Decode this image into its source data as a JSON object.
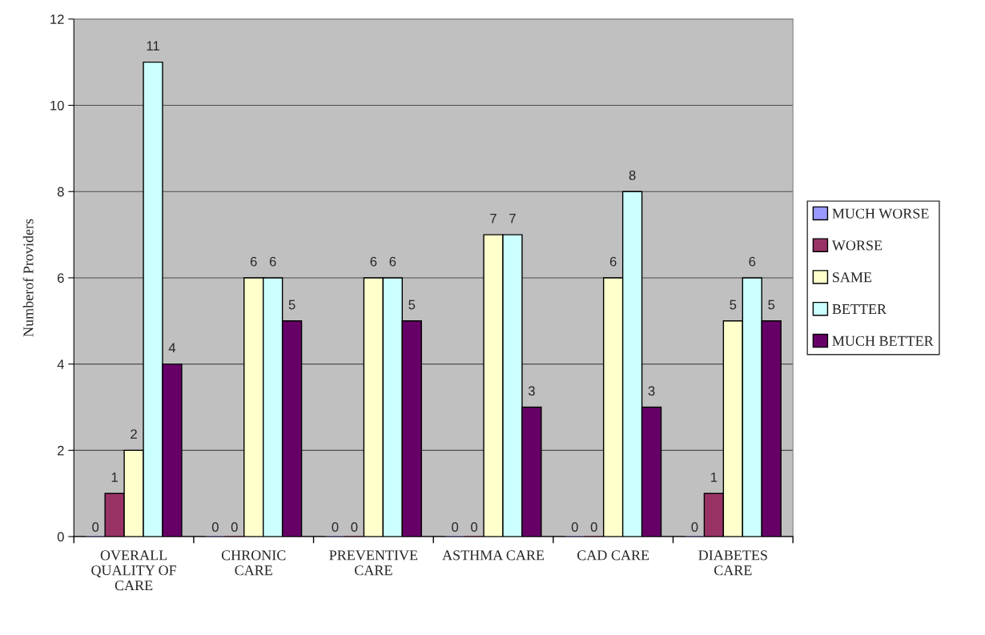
{
  "chart_data": {
    "type": "bar",
    "ylabel": "Numberof Providers",
    "categories": [
      "OVERALL\nQUALITY OF\nCARE",
      "CHRONIC\nCARE",
      "PREVENTIVE\nCARE",
      "ASTHMA CARE",
      "CAD CARE",
      "DIABETES\nCARE"
    ],
    "series": [
      {
        "name": "MUCH WORSE",
        "color": "#9999ff",
        "values": [
          0,
          0,
          0,
          0,
          0,
          0
        ]
      },
      {
        "name": "WORSE",
        "color": "#993366",
        "values": [
          1,
          0,
          0,
          0,
          0,
          1
        ]
      },
      {
        "name": "SAME",
        "color": "#ffffcc",
        "values": [
          2,
          6,
          6,
          7,
          6,
          5
        ]
      },
      {
        "name": "BETTER",
        "color": "#ccffff",
        "values": [
          11,
          6,
          6,
          7,
          8,
          6
        ]
      },
      {
        "name": "MUCH BETTER",
        "color": "#660066",
        "values": [
          4,
          5,
          5,
          3,
          3,
          5
        ]
      }
    ],
    "ylim": [
      0,
      12
    ],
    "yticks": [
      0,
      2,
      4,
      6,
      8,
      10,
      12
    ],
    "grid": "y",
    "legend": "right",
    "data_labels": true
  }
}
